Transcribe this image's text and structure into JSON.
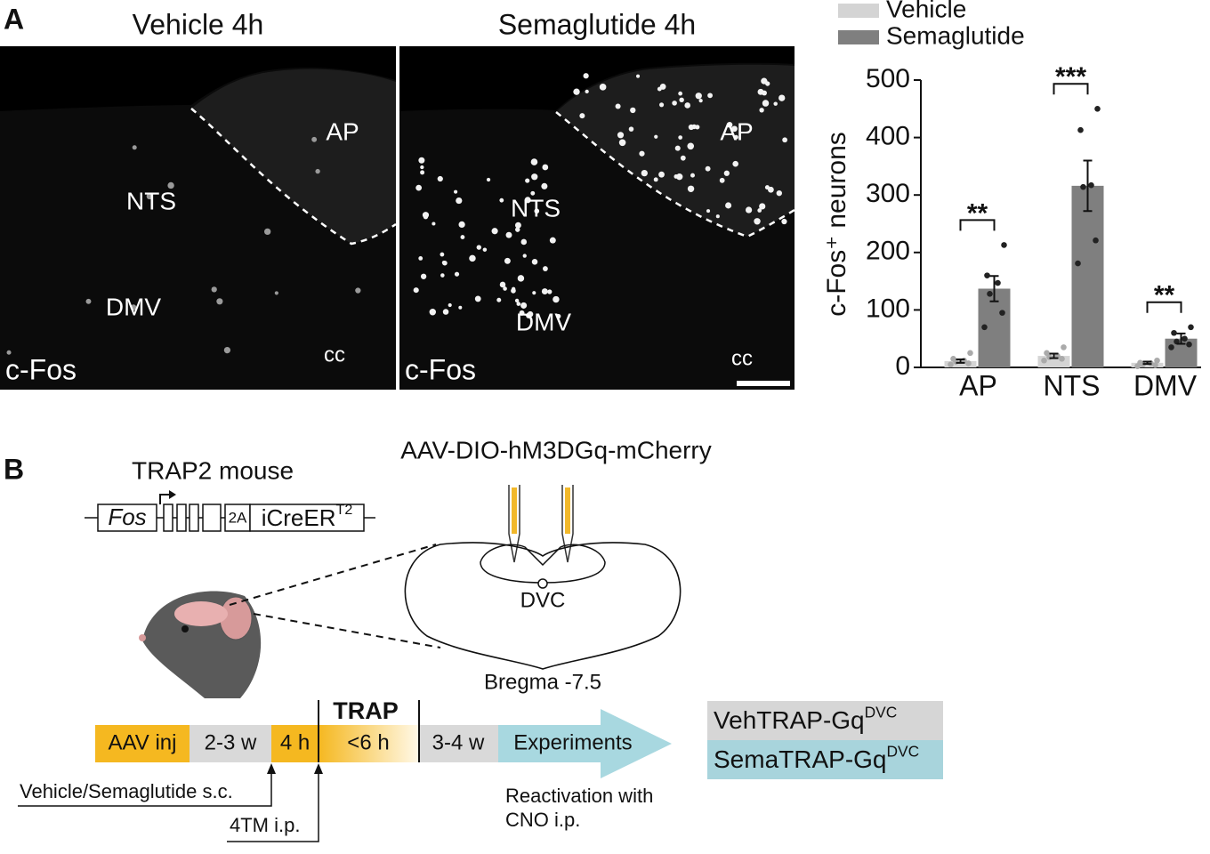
{
  "panel_a": {
    "label": "A",
    "images": [
      {
        "title": "Vehicle 4h",
        "marker": "c-Fos",
        "regions": [
          "AP",
          "NTS",
          "DMV",
          "cc"
        ]
      },
      {
        "title": "Semaglutide 4h",
        "marker": "c-Fos",
        "regions": [
          "AP",
          "NTS",
          "DMV",
          "cc"
        ]
      }
    ]
  },
  "chart_data": {
    "type": "bar",
    "ylabel": "c-Fos⁺ neurons",
    "categories": [
      "AP",
      "NTS",
      "DMV"
    ],
    "series": [
      {
        "name": "Vehicle",
        "color": "#d4d4d4",
        "values": [
          11,
          20,
          8
        ],
        "errors": [
          3,
          4,
          2
        ],
        "points": [
          [
            5,
            7,
            10,
            12,
            15,
            25
          ],
          [
            12,
            15,
            18,
            20,
            25,
            35
          ],
          [
            2,
            4,
            5,
            7,
            8,
            12
          ]
        ]
      },
      {
        "name": "Semaglutide",
        "color": "#7f7f7f",
        "values": [
          137,
          316,
          50
        ],
        "errors": [
          22,
          44,
          9
        ],
        "points": [
          [
            70,
            95,
            128,
            147,
            160,
            213
          ],
          [
            181,
            221,
            314,
            317,
            413,
            450
          ],
          [
            35,
            40,
            45,
            50,
            60,
            70
          ]
        ]
      }
    ],
    "significance": [
      "**",
      "***",
      "**"
    ],
    "ylim": [
      0,
      500
    ],
    "yticks": [
      0,
      100,
      200,
      300,
      400,
      500
    ]
  },
  "panel_b": {
    "label": "B",
    "mouse": "TRAP2 mouse",
    "construct": {
      "gene": "Fos",
      "linker": "2A",
      "cre": "iCreER",
      "cre_sup": "T2"
    },
    "virus": "AAV-DIO-hM3DGq-mCherry",
    "region": "DVC",
    "bregma": "Bregma -7.5",
    "timeline": {
      "phases": [
        "AAV inj",
        "2-3 w",
        "4 h",
        "<6 h",
        "3-4 w",
        "Experiments"
      ],
      "trap": "TRAP",
      "injection": "Vehicle/Semaglutide s.c.",
      "tamoxifen": "4TM i.p.",
      "reactivation": [
        "Reactivation with",
        "CNO i.p."
      ]
    },
    "groups": [
      {
        "name": "VehTRAP-Gq",
        "sup": "DVC"
      },
      {
        "name": "SemaTRAP-Gq",
        "sup": "DVC"
      }
    ]
  }
}
